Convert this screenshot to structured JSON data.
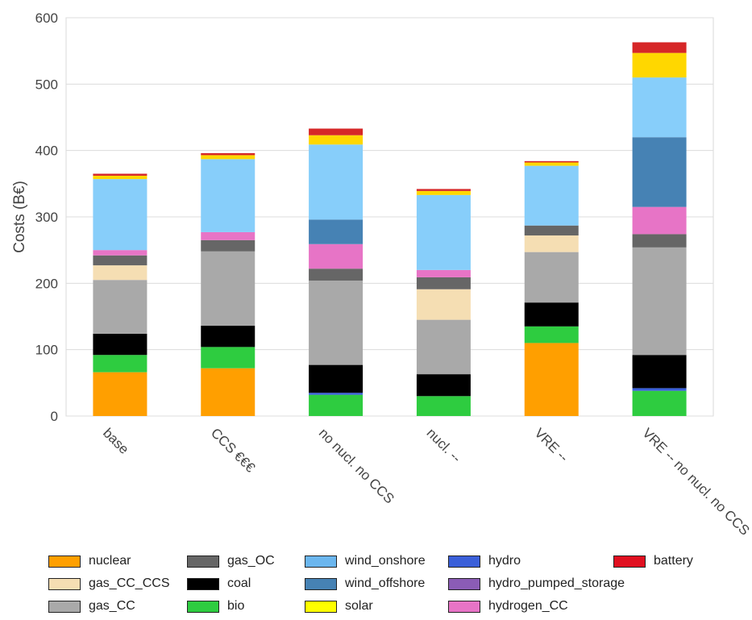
{
  "chart_data": {
    "type": "bar",
    "stacked": true,
    "ylabel": "Costs (B€)",
    "xlabel": "",
    "ylim": [
      0,
      600
    ],
    "yticks": [
      0,
      100,
      200,
      300,
      400,
      500,
      600
    ],
    "grid": true,
    "legend_placement": "bottom",
    "categories": [
      "base",
      "CCS €€€",
      "no nucl. no CCS",
      "nucl. --",
      "VRE --",
      "VRE -- no nucl. no CCS"
    ],
    "series": [
      {
        "name": "nuclear",
        "color": "#FF9F00",
        "values": [
          66,
          72,
          0,
          0,
          110,
          0
        ]
      },
      {
        "name": "bio",
        "color": "#2ECC40",
        "values": [
          26,
          32,
          32,
          30,
          25,
          38
        ]
      },
      {
        "name": "hydro",
        "color": "#3A5FD9",
        "values": [
          0,
          0,
          3,
          0,
          0,
          4
        ]
      },
      {
        "name": "coal",
        "color": "#000000",
        "values": [
          32,
          32,
          42,
          33,
          36,
          50
        ]
      },
      {
        "name": "gas_CC_CCS",
        "color": "#F5DEB3",
        "values": [
          0,
          0,
          0,
          0,
          0,
          0
        ]
      },
      {
        "name": "gas_CC",
        "color": "#A9A9A9",
        "values": [
          81,
          112,
          127,
          82,
          76,
          162
        ]
      },
      {
        "name": "gas_CC_CCS",
        "color": "#F5DEB3",
        "values": [
          22,
          0,
          0,
          46,
          25,
          0
        ]
      },
      {
        "name": "gas_OC",
        "color": "#666666",
        "values": [
          15,
          17,
          18,
          18,
          15,
          20
        ]
      },
      {
        "name": "hydrogen_CC",
        "color": "#E774C6",
        "values": [
          8,
          12,
          37,
          11,
          0,
          41
        ]
      },
      {
        "name": "wind_offshore",
        "color": "#4682B4",
        "values": [
          0,
          0,
          37,
          0,
          0,
          105
        ]
      },
      {
        "name": "wind_onshore",
        "color": "#87CEFA",
        "values": [
          107,
          110,
          113,
          113,
          90,
          90
        ]
      },
      {
        "name": "solar",
        "color": "#FFD700",
        "values": [
          5,
          6,
          14,
          6,
          5,
          37
        ]
      },
      {
        "name": "hydro_pumped_storage",
        "color": "#8B5CB6",
        "values": [
          0,
          0,
          0,
          0,
          0,
          0
        ]
      },
      {
        "name": "battery",
        "color": "#D62728",
        "values": [
          3,
          3,
          10,
          3,
          2,
          16
        ]
      }
    ]
  },
  "legend": [
    {
      "label": "nuclear",
      "color": "#FF9F00"
    },
    {
      "label": "gas_CC_CCS",
      "color": "#F5DEB3"
    },
    {
      "label": "gas_CC",
      "color": "#A9A9A9"
    },
    {
      "label": "gas_OC",
      "color": "#666666"
    },
    {
      "label": "coal",
      "color": "#000000"
    },
    {
      "label": "bio",
      "color": "#2ECC40"
    },
    {
      "label": "wind_onshore",
      "color": "#6BB6EE"
    },
    {
      "label": "wind_offshore",
      "color": "#4682B4"
    },
    {
      "label": "solar",
      "color": "#FFFF00"
    },
    {
      "label": "hydro",
      "color": "#3A5FD9"
    },
    {
      "label": "hydro_pumped_storage",
      "color": "#8B5CB6"
    },
    {
      "label": "hydrogen_CC",
      "color": "#E774C6"
    },
    {
      "label": "battery",
      "color": "#E01020"
    }
  ]
}
